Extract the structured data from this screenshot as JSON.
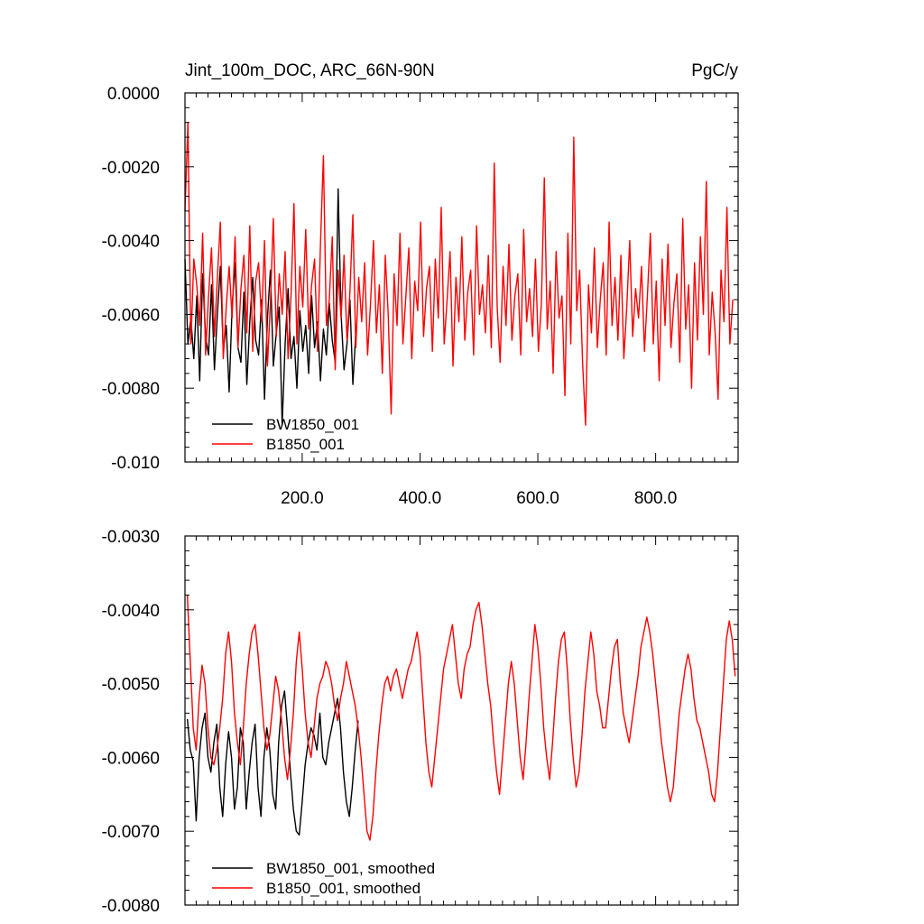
{
  "chart_data": [
    {
      "type": "line",
      "title": "Jint_100m_DOC, ARC_66N-90N",
      "units": "PgC/y",
      "xlim": [
        1,
        940
      ],
      "ylim": [
        -0.01,
        0.0
      ],
      "yticks": [
        "0.0000",
        "-0.0020",
        "-0.0040",
        "-0.0060",
        "-0.0080",
        "-0.010"
      ],
      "ytick_values": [
        0.0,
        -0.002,
        -0.004,
        -0.006,
        -0.008,
        -0.01
      ],
      "xticks": [
        "200.0",
        "400.0",
        "600.0",
        "800.0"
      ],
      "xtick_values": [
        200,
        400,
        600,
        800
      ],
      "legend_position": "bottom-left",
      "series": [
        {
          "name": "BW1850_001",
          "color": "#000000",
          "x_start": 1,
          "x_step": 5,
          "values": [
            -0.0045,
            -0.0068,
            -0.0061,
            -0.0072,
            -0.0055,
            -0.0078,
            -0.0049,
            -0.0066,
            -0.0071,
            -0.0052,
            -0.0075,
            -0.006,
            -0.0047,
            -0.007,
            -0.0063,
            -0.0081,
            -0.0058,
            -0.0046,
            -0.0069,
            -0.0073,
            -0.0054,
            -0.0079,
            -0.0062,
            -0.005,
            -0.0067,
            -0.0071,
            -0.0056,
            -0.0083,
            -0.0061,
            -0.0048,
            -0.0074,
            -0.0065,
            -0.0058,
            -0.009,
            -0.0068,
            -0.0053,
            -0.0072,
            -0.0066,
            -0.008,
            -0.0059,
            -0.007,
            -0.0063,
            -0.0076,
            -0.0055,
            -0.0069,
            -0.0062,
            -0.0078,
            -0.0064,
            -0.0071,
            -0.0057,
            -0.0067,
            -0.0073,
            -0.0026,
            -0.006,
            -0.0075,
            -0.0068,
            -0.0056,
            -0.0079,
            -0.0065
          ]
        },
        {
          "name": "B1850_001",
          "color": "#ff0000",
          "x_start": 1,
          "x_step": 5,
          "values": [
            -0.0032,
            -0.0008,
            -0.0068,
            -0.0045,
            -0.0052,
            -0.0063,
            -0.0038,
            -0.0071,
            -0.0055,
            -0.0042,
            -0.0066,
            -0.005,
            -0.0035,
            -0.0072,
            -0.0058,
            -0.0047,
            -0.0061,
            -0.0039,
            -0.0069,
            -0.0053,
            -0.0044,
            -0.0065,
            -0.0036,
            -0.007,
            -0.0051,
            -0.0046,
            -0.0062,
            -0.004,
            -0.0074,
            -0.0057,
            -0.0034,
            -0.0066,
            -0.0049,
            -0.006,
            -0.0043,
            -0.0072,
            -0.0055,
            -0.003,
            -0.0068,
            -0.0047,
            -0.0058,
            -0.0037,
            -0.0064,
            -0.0052,
            -0.0045,
            -0.007,
            -0.0041,
            -0.0017,
            -0.0063,
            -0.0056,
            -0.0039,
            -0.0075,
            -0.0048,
            -0.0061,
            -0.0044,
            -0.0067,
            -0.0054,
            -0.0033,
            -0.0069,
            -0.005,
            -0.0062,
            -0.0046,
            -0.0071,
            -0.0057,
            -0.004,
            -0.0065,
            -0.0052,
            -0.0076,
            -0.0044,
            -0.006,
            -0.0087,
            -0.0049,
            -0.0063,
            -0.0038,
            -0.0068,
            -0.0055,
            -0.0042,
            -0.0072,
            -0.0051,
            -0.0059,
            -0.0035,
            -0.0066,
            -0.0053,
            -0.0047,
            -0.007,
            -0.0045,
            -0.0061,
            -0.0031,
            -0.0068,
            -0.0056,
            -0.0043,
            -0.0074,
            -0.005,
            -0.0062,
            -0.0039,
            -0.0067,
            -0.0054,
            -0.0048,
            -0.0071,
            -0.0036,
            -0.006,
            -0.0052,
            -0.0065,
            -0.0044,
            -0.0069,
            -0.0019,
            -0.0058,
            -0.0073,
            -0.0047,
            -0.0063,
            -0.0041,
            -0.0067,
            -0.0055,
            -0.0049,
            -0.0071,
            -0.0037,
            -0.0062,
            -0.0053,
            -0.0066,
            -0.0045,
            -0.007,
            -0.0057,
            -0.0023,
            -0.0064,
            -0.0051,
            -0.0076,
            -0.0043,
            -0.0061,
            -0.0055,
            -0.0082,
            -0.0038,
            -0.0068,
            -0.0012,
            -0.0059,
            -0.0048,
            -0.0073,
            -0.009,
            -0.0052,
            -0.0065,
            -0.0042,
            -0.0069,
            -0.0056,
            -0.0046,
            -0.0071,
            -0.0035,
            -0.0063,
            -0.005,
            -0.0067,
            -0.0044,
            -0.0072,
            -0.0058,
            -0.004,
            -0.0066,
            -0.0053,
            -0.0061,
            -0.0047,
            -0.007,
            -0.0055,
            -0.0038,
            -0.0068,
            -0.0051,
            -0.0078,
            -0.0045,
            -0.0063,
            -0.0041,
            -0.0069,
            -0.0057,
            -0.0049,
            -0.0073,
            -0.0034,
            -0.0064,
            -0.0052,
            -0.008,
            -0.0046,
            -0.0067,
            -0.0039,
            -0.006,
            -0.0024,
            -0.0071,
            -0.0054,
            -0.0065,
            -0.0083,
            -0.0048,
            -0.0062,
            -0.0031,
            -0.0068,
            -0.0056
          ]
        }
      ]
    },
    {
      "type": "line",
      "xlim": [
        1,
        940
      ],
      "ylim": [
        -0.008,
        -0.003
      ],
      "yticks": [
        "-0.0030",
        "-0.0040",
        "-0.0050",
        "-0.0060",
        "-0.0070",
        "-0.0080"
      ],
      "ytick_values": [
        -0.003,
        -0.004,
        -0.005,
        -0.006,
        -0.007,
        -0.008
      ],
      "legend_position": "bottom-left",
      "series": [
        {
          "name": "BW1850_001, smoothed",
          "color": "#000000",
          "x_start": 5,
          "x_step": 5,
          "values": [
            -0.00548,
            -0.0059,
            -0.00605,
            -0.00686,
            -0.006,
            -0.0056,
            -0.0054,
            -0.006,
            -0.0062,
            -0.0058,
            -0.00555,
            -0.0064,
            -0.0068,
            -0.0061,
            -0.00565,
            -0.006,
            -0.0067,
            -0.0064,
            -0.0056,
            -0.0058,
            -0.0067,
            -0.0062,
            -0.0058,
            -0.00555,
            -0.0064,
            -0.0068,
            -0.006,
            -0.0056,
            -0.0059,
            -0.0065,
            -0.0067,
            -0.0058,
            -0.0053,
            -0.0051,
            -0.0056,
            -0.0062,
            -0.0067,
            -0.007,
            -0.00705,
            -0.0066,
            -0.0061,
            -0.0058,
            -0.0056,
            -0.0057,
            -0.0059,
            -0.0054,
            -0.006,
            -0.0061,
            -0.0058,
            -0.0056,
            -0.0054,
            -0.0052,
            -0.0056,
            -0.0062,
            -0.0066,
            -0.0068,
            -0.0064,
            -0.0059,
            -0.0055
          ]
        },
        {
          "name": "B1850_001, smoothed",
          "color": "#ff0000",
          "x_start": 5,
          "x_step": 5,
          "values": [
            -0.0038,
            -0.0047,
            -0.0056,
            -0.0059,
            -0.0052,
            -0.00475,
            -0.005,
            -0.0056,
            -0.006,
            -0.0061,
            -0.0059,
            -0.0056,
            -0.0052,
            -0.0046,
            -0.0043,
            -0.0047,
            -0.0054,
            -0.0058,
            -0.0061,
            -0.0056,
            -0.005,
            -0.0046,
            -0.0043,
            -0.0042,
            -0.0046,
            -0.0051,
            -0.0056,
            -0.0059,
            -0.0057,
            -0.0053,
            -0.0049,
            -0.0051,
            -0.0055,
            -0.006,
            -0.0063,
            -0.0059,
            -0.0054,
            -0.0047,
            -0.0043,
            -0.0048,
            -0.0054,
            -0.0058,
            -0.006,
            -0.0056,
            -0.0052,
            -0.005,
            -0.0049,
            -0.0047,
            -0.0048,
            -0.005,
            -0.0053,
            -0.0055,
            -0.0052,
            -0.005,
            -0.0047,
            -0.0049,
            -0.0051,
            -0.0053,
            -0.0056,
            -0.006,
            -0.0065,
            -0.007,
            -0.00712,
            -0.0068,
            -0.0062,
            -0.0057,
            -0.0053,
            -0.005,
            -0.0049,
            -0.0051,
            -0.0049,
            -0.0048,
            -0.005,
            -0.0052,
            -0.005,
            -0.0048,
            -0.0047,
            -0.0045,
            -0.0043,
            -0.0046,
            -0.0052,
            -0.0058,
            -0.0062,
            -0.0064,
            -0.006,
            -0.0056,
            -0.0052,
            -0.0048,
            -0.0046,
            -0.0044,
            -0.0042,
            -0.0046,
            -0.005,
            -0.0052,
            -0.0048,
            -0.0046,
            -0.0045,
            -0.0042,
            -0.004,
            -0.0039,
            -0.0042,
            -0.0046,
            -0.005,
            -0.0053,
            -0.0058,
            -0.0062,
            -0.0065,
            -0.006,
            -0.0055,
            -0.005,
            -0.0047,
            -0.005,
            -0.0055,
            -0.006,
            -0.0063,
            -0.0058,
            -0.0052,
            -0.0047,
            -0.0042,
            -0.0045,
            -0.005,
            -0.0056,
            -0.006,
            -0.0063,
            -0.0058,
            -0.0052,
            -0.0047,
            -0.0044,
            -0.0043,
            -0.0048,
            -0.0055,
            -0.006,
            -0.0064,
            -0.0062,
            -0.0057,
            -0.0051,
            -0.0047,
            -0.0043,
            -0.0046,
            -0.0051,
            -0.0053,
            -0.0056,
            -0.0056,
            -0.0052,
            -0.0048,
            -0.0045,
            -0.0044,
            -0.005,
            -0.0054,
            -0.0056,
            -0.0058,
            -0.0055,
            -0.0052,
            -0.0049,
            -0.0045,
            -0.0043,
            -0.0041,
            -0.0043,
            -0.0046,
            -0.005,
            -0.0054,
            -0.0058,
            -0.0061,
            -0.0064,
            -0.0066,
            -0.0064,
            -0.0059,
            -0.0054,
            -0.0051,
            -0.0048,
            -0.0046,
            -0.0048,
            -0.0052,
            -0.0055,
            -0.0056,
            -0.0058,
            -0.006,
            -0.0062,
            -0.0065,
            -0.0066,
            -0.0062,
            -0.0056,
            -0.005,
            -0.0044,
            -0.00415,
            -0.0044,
            -0.0049
          ]
        }
      ]
    }
  ]
}
